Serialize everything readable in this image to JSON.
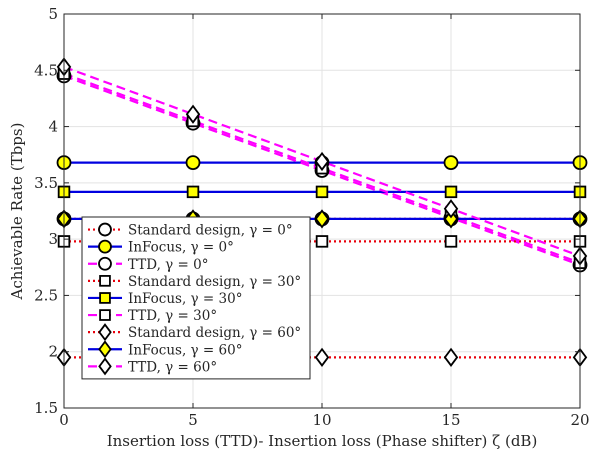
{
  "chart_data": {
    "type": "line",
    "xlabel": "Insertion loss (TTD)- Insertion loss (Phase shifter) ζ (dB)",
    "ylabel": "Achievable Rate (Tbps)",
    "xlim": [
      0,
      20
    ],
    "ylim": [
      1.5,
      5
    ],
    "xticks": [
      "0",
      "5",
      "10",
      "15",
      "20"
    ],
    "yticks": [
      "1.5",
      "2",
      "2.5",
      "3",
      "3.5",
      "4",
      "4.5",
      "5"
    ],
    "grid": true,
    "legend_position": "lower-left",
    "x": [
      0,
      5,
      10,
      15,
      20
    ],
    "series": [
      {
        "name": "Standard design, γ = 0°",
        "marker": "circle",
        "line": "dotted",
        "color": "#e8000b",
        "marker_fill": "#ffffff",
        "values": [
          3.18,
          3.18,
          3.18,
          3.18,
          3.18
        ]
      },
      {
        "name": "InFocus, γ = 0°",
        "marker": "circle",
        "line": "solid",
        "color": "#0000e0",
        "marker_fill": "#ffff00",
        "values": [
          3.68,
          3.68,
          3.68,
          3.68,
          3.68
        ]
      },
      {
        "name": "TTD, γ = 0°",
        "marker": "circle",
        "line": "dashed",
        "color": "#ff00ff",
        "marker_fill": "#ffffff",
        "values": [
          4.45,
          4.03,
          3.61,
          3.19,
          2.77
        ]
      },
      {
        "name": "Standard design, γ = 30°",
        "marker": "square",
        "line": "dotted",
        "color": "#e8000b",
        "marker_fill": "#ffffff",
        "values": [
          2.98,
          2.98,
          2.98,
          2.98,
          2.98
        ]
      },
      {
        "name": "InFocus, γ = 30°",
        "marker": "square",
        "line": "solid",
        "color": "#0000e0",
        "marker_fill": "#ffff00",
        "values": [
          3.42,
          3.42,
          3.42,
          3.42,
          3.42
        ]
      },
      {
        "name": "TTD, γ = 30°",
        "marker": "square",
        "line": "dashed",
        "color": "#ff00ff",
        "marker_fill": "#ffffff",
        "values": [
          4.47,
          4.05,
          3.63,
          3.21,
          2.79
        ]
      },
      {
        "name": "Standard design, γ = 60°",
        "marker": "diamond",
        "line": "dotted",
        "color": "#e8000b",
        "marker_fill": "#ffffff",
        "values": [
          1.95,
          1.95,
          1.95,
          1.95,
          1.95
        ]
      },
      {
        "name": "InFocus, γ = 60°",
        "marker": "diamond",
        "line": "solid",
        "color": "#0000e0",
        "marker_fill": "#ffff00",
        "values": [
          3.18,
          3.18,
          3.18,
          3.18,
          3.18
        ]
      },
      {
        "name": "TTD, γ = 60°",
        "marker": "diamond",
        "line": "dashed",
        "color": "#ff00ff",
        "marker_fill": "#ffffff",
        "values": [
          4.53,
          4.11,
          3.69,
          3.27,
          2.85
        ]
      }
    ]
  }
}
